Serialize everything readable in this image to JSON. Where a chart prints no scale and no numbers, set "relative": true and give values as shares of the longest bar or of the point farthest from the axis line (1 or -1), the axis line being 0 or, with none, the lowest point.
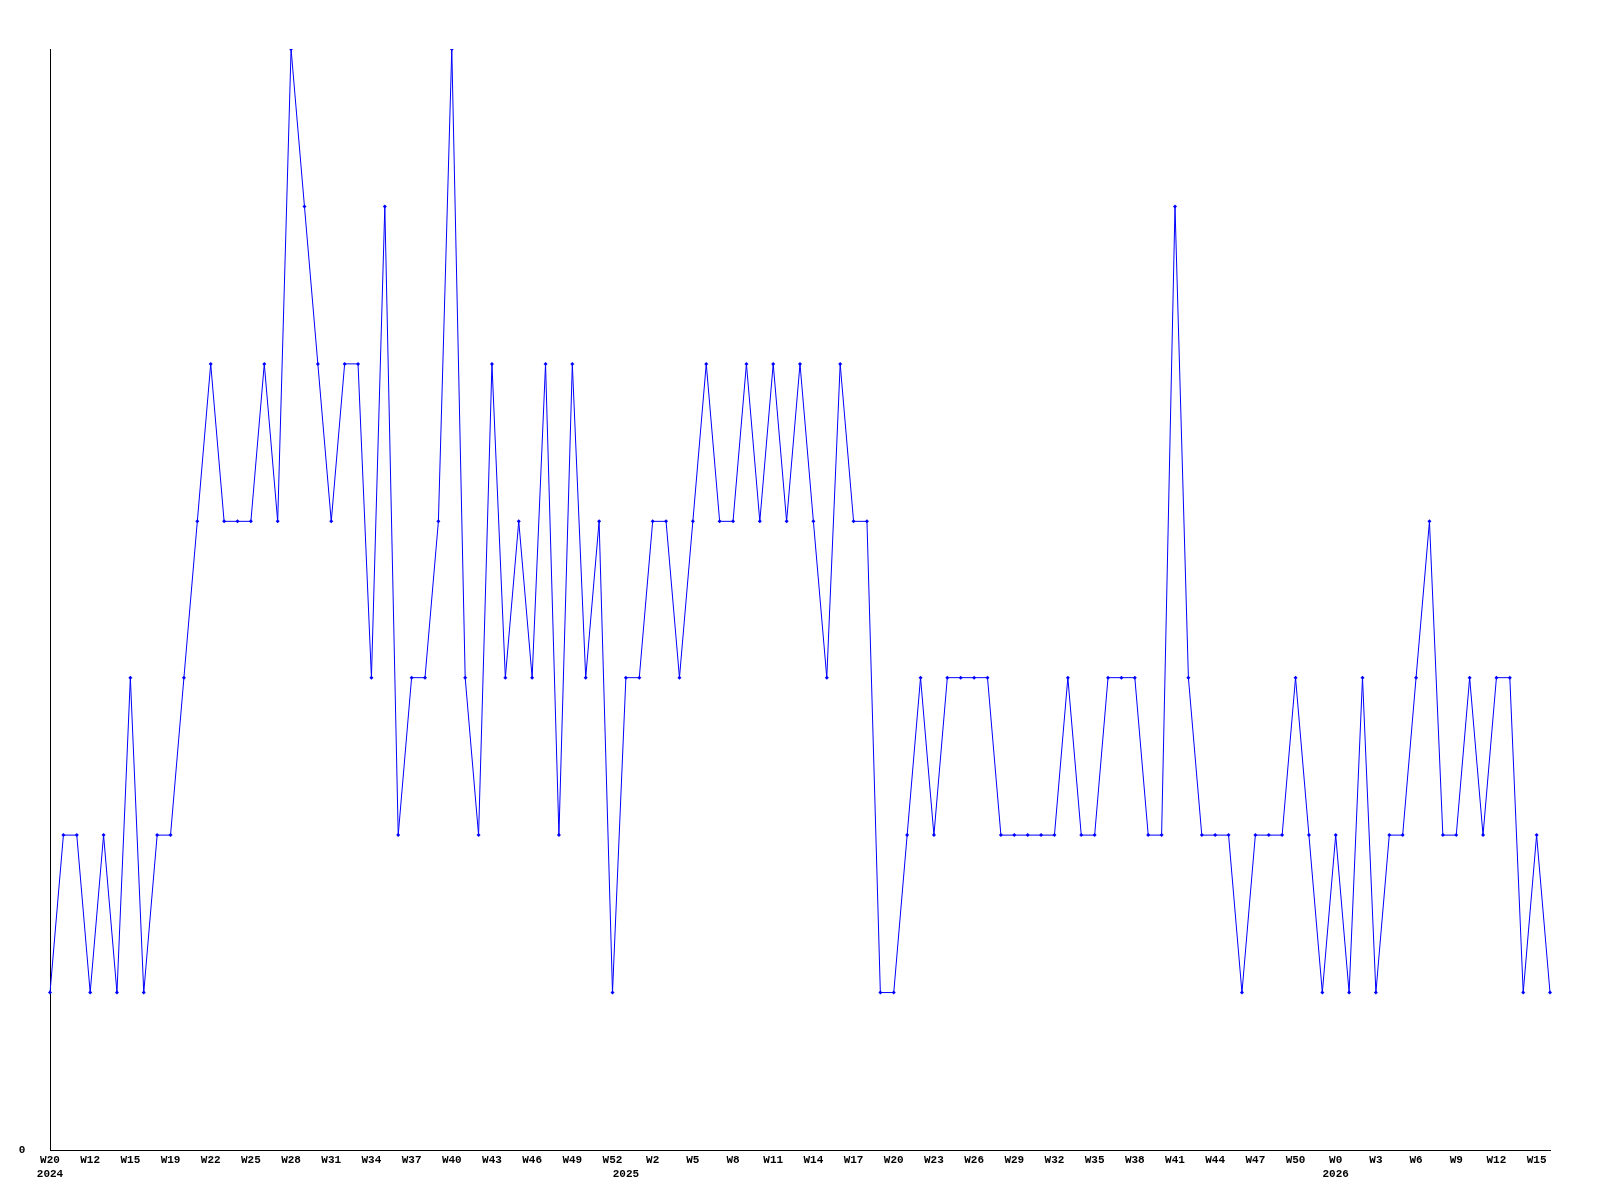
{
  "chart_data": {
    "type": "line",
    "relative": true,
    "categories": [
      "W20\n2024",
      null,
      null,
      "W12",
      null,
      null,
      "W15",
      null,
      null,
      "W19",
      null,
      null,
      "W22",
      null,
      null,
      "W25",
      null,
      null,
      "W28",
      null,
      null,
      "W31",
      null,
      null,
      "W34",
      null,
      null,
      "W37",
      null,
      null,
      "W40",
      null,
      null,
      "W43",
      null,
      null,
      "W46",
      null,
      null,
      "W49",
      null,
      null,
      "W52",
      "\n2025",
      null,
      "W2",
      null,
      null,
      "W5",
      null,
      null,
      "W8",
      null,
      null,
      "W11",
      null,
      null,
      "W14",
      null,
      null,
      "W17",
      null,
      null,
      "W20",
      null,
      null,
      "W23",
      null,
      null,
      "W26",
      null,
      null,
      "W29",
      null,
      null,
      "W32",
      null,
      null,
      "W35",
      null,
      null,
      "W38",
      null,
      null,
      "W41",
      null,
      null,
      "W44",
      null,
      null,
      "W47",
      null,
      null,
      "W50",
      null,
      null,
      "W0\n2026",
      null,
      null,
      "W3",
      null,
      null,
      "W6",
      null,
      null,
      "W9",
      null,
      null,
      "W12",
      null,
      null,
      "W15",
      null
    ],
    "series": [
      {
        "color": "#0000ff",
        "values": [
          0.143,
          0.286,
          0.286,
          0.143,
          0.286,
          0.143,
          0.429,
          0.143,
          0.286,
          0.286,
          0.429,
          0.571,
          0.714,
          0.571,
          0.571,
          0.571,
          0.714,
          0.571,
          1,
          0.857,
          0.714,
          0.571,
          0.714,
          0.714,
          0.429,
          0.857,
          0.286,
          0.429,
          0.429,
          0.571,
          1,
          0.429,
          0.286,
          0.714,
          0.429,
          0.571,
          0.429,
          0.714,
          0.286,
          0.714,
          0.429,
          0.571,
          0.143,
          0.429,
          0.429,
          0.571,
          0.571,
          0.429,
          0.571,
          0.714,
          0.571,
          0.571,
          0.714,
          0.571,
          0.714,
          0.571,
          0.714,
          0.571,
          0.429,
          0.714,
          0.571,
          0.571,
          0.143,
          0.143,
          0.286,
          0.429,
          0.286,
          0.429,
          0.429,
          0.429,
          0.429,
          0.286,
          0.286,
          0.286,
          0.286,
          0.286,
          0.429,
          0.286,
          0.286,
          0.429,
          0.429,
          0.429,
          0.286,
          0.286,
          0.857,
          0.429,
          0.286,
          0.286,
          0.286,
          0.143,
          0.286,
          0.286,
          0.286,
          0.429,
          0.286,
          0.143,
          0.286,
          0.143,
          0.429,
          0.143,
          0.286,
          0.286,
          0.429,
          0.571,
          0.286,
          0.286,
          0.429,
          0.286,
          0.429,
          0.429,
          0.143,
          0.286,
          0.143
        ]
      }
    ],
    "annotations": [
      "0"
    ],
    "marker": "diamond",
    "line_style": "solid",
    "grid": false,
    "legend": false
  }
}
